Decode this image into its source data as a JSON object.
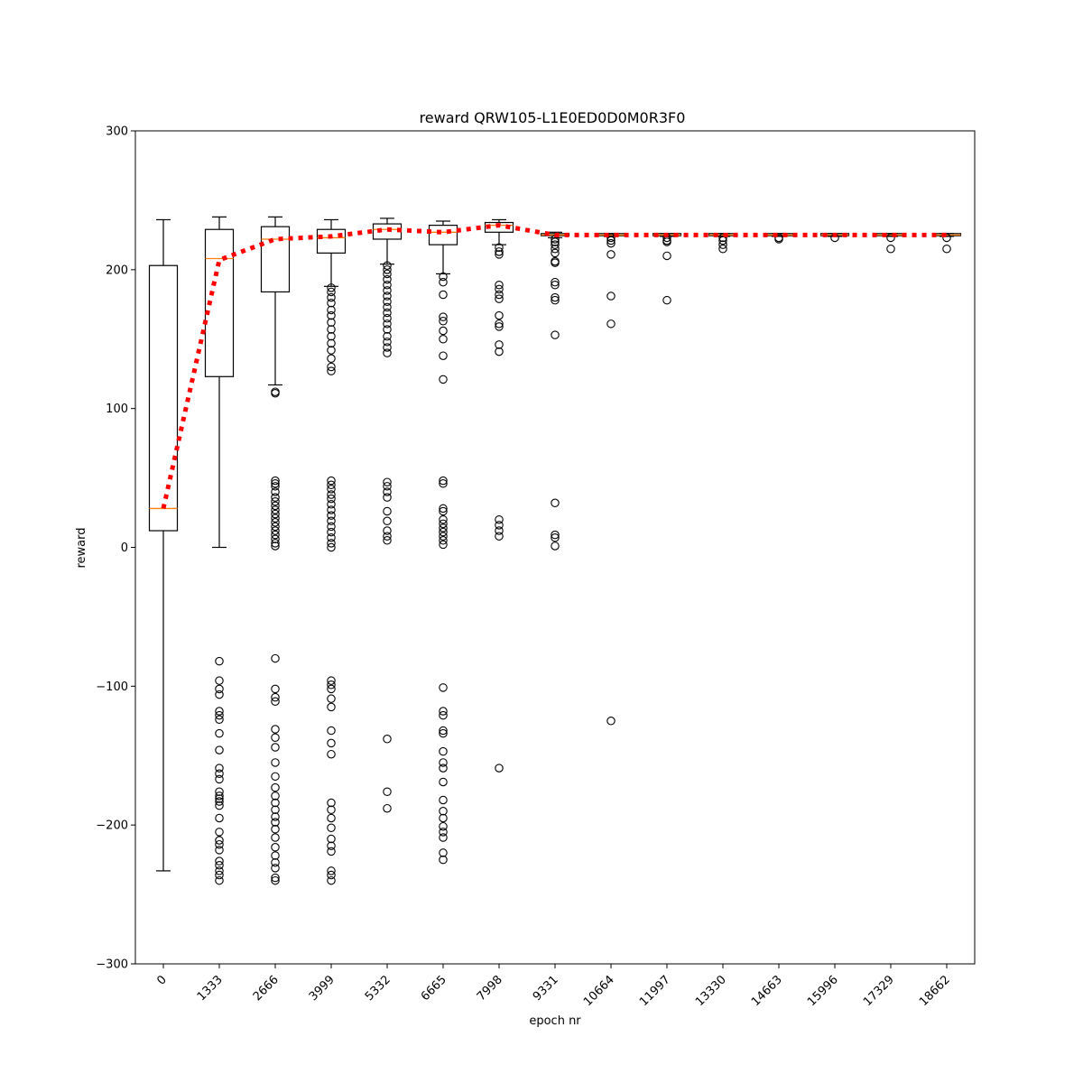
{
  "chart_data": {
    "type": "box",
    "title": "reward QRW105-L1E0ED0D0M0R3F0",
    "xlabel": "epoch nr",
    "ylabel": "reward",
    "ylim": [
      -300,
      300
    ],
    "yticks": [
      -300,
      -200,
      -100,
      0,
      100,
      200,
      300
    ],
    "categories": [
      "0",
      "1333",
      "2666",
      "3999",
      "5332",
      "6665",
      "7998",
      "9331",
      "10664",
      "11997",
      "13330",
      "14663",
      "15996",
      "17329",
      "18662"
    ],
    "boxes": [
      {
        "whisker_low": -233,
        "q1": 12,
        "median": 28,
        "q3": 203,
        "whisker_high": 236,
        "outliers": []
      },
      {
        "whisker_low": 0,
        "q1": 123,
        "median": 208,
        "q3": 229,
        "whisker_high": 238,
        "outliers": [
          -82,
          -96,
          -102,
          -106,
          -118,
          -121,
          -124,
          -134,
          -146,
          -159,
          -163,
          -167,
          -176,
          -179,
          -181,
          -183,
          -186,
          -195,
          -205,
          -211,
          -214,
          -218,
          -226,
          -229,
          -233,
          -236,
          -240
        ]
      },
      {
        "whisker_low": 117,
        "q1": 184,
        "median": 222,
        "q3": 231,
        "whisker_high": 238,
        "outliers": [
          111,
          112,
          48,
          46,
          44,
          40,
          36,
          33,
          30,
          27,
          24,
          21,
          18,
          15,
          12,
          9,
          6,
          3,
          1,
          -80,
          -102,
          -108,
          -111,
          -131,
          -137,
          -144,
          -155,
          -165,
          -173,
          -179,
          -184,
          -189,
          -194,
          -198,
          -203,
          -209,
          -216,
          -222,
          -227,
          -231,
          -238,
          -240
        ]
      },
      {
        "whisker_low": 188,
        "q1": 212,
        "median": 223,
        "q3": 229,
        "whisker_high": 236,
        "outliers": [
          187,
          184,
          180,
          176,
          171,
          167,
          162,
          157,
          152,
          147,
          142,
          136,
          130,
          127,
          48,
          45,
          42,
          38,
          35,
          31,
          27,
          23,
          19,
          15,
          11,
          7,
          3,
          0,
          -96,
          -99,
          -102,
          -109,
          -115,
          -132,
          -141,
          -149,
          -184,
          -189,
          -195,
          -202,
          -210,
          -215,
          -219,
          -233,
          -236,
          -240
        ]
      },
      {
        "whisker_low": 204,
        "q1": 222,
        "median": 229,
        "q3": 233,
        "whisker_high": 237,
        "outliers": [
          203,
          200,
          197,
          193,
          189,
          185,
          181,
          177,
          173,
          169,
          165,
          161,
          157,
          152,
          148,
          144,
          140,
          47,
          44,
          40,
          36,
          26,
          19,
          12,
          8,
          5,
          -138,
          -176,
          -188
        ]
      },
      {
        "whisker_low": 197,
        "q1": 218,
        "median": 227,
        "q3": 232,
        "whisker_high": 235,
        "outliers": [
          195,
          191,
          182,
          166,
          163,
          156,
          150,
          138,
          121,
          48,
          46,
          28,
          26,
          20,
          17,
          14,
          11,
          8,
          5,
          2,
          -101,
          -118,
          -121,
          -132,
          -134,
          -147,
          -155,
          -159,
          -169,
          -182,
          -190,
          -195,
          -201,
          -205,
          -209,
          -220,
          -225
        ]
      },
      {
        "whisker_low": 218,
        "q1": 227,
        "median": 232,
        "q3": 234,
        "whisker_high": 236,
        "outliers": [
          216,
          213,
          211,
          189,
          186,
          182,
          179,
          167,
          161,
          159,
          146,
          141,
          20,
          16,
          12,
          8,
          -159
        ]
      },
      {
        "whisker_low": 223,
        "q1": 224.5,
        "median": 225,
        "q3": 226,
        "whisker_high": 227,
        "outliers": [
          222,
          220,
          218,
          215,
          212,
          206,
          205,
          191,
          189,
          180,
          178,
          153,
          32,
          9,
          7,
          1
        ]
      },
      {
        "whisker_low": 224,
        "q1": 224.5,
        "median": 225,
        "q3": 226,
        "whisker_high": 226,
        "outliers": [
          223,
          221,
          219,
          211,
          181,
          161,
          -125
        ]
      },
      {
        "whisker_low": 224,
        "q1": 224.5,
        "median": 225,
        "q3": 226,
        "whisker_high": 226,
        "outliers": [
          223,
          221,
          220,
          210,
          178
        ]
      },
      {
        "whisker_low": 224,
        "q1": 224.5,
        "median": 225,
        "q3": 226,
        "whisker_high": 226,
        "outliers": [
          223,
          221,
          218,
          215
        ]
      },
      {
        "whisker_low": 224,
        "q1": 224.5,
        "median": 225,
        "q3": 226,
        "whisker_high": 226,
        "outliers": [
          223,
          222
        ]
      },
      {
        "whisker_low": 224,
        "q1": 224.5,
        "median": 225,
        "q3": 226,
        "whisker_high": 226,
        "outliers": [
          223
        ]
      },
      {
        "whisker_low": 224,
        "q1": 224.5,
        "median": 225,
        "q3": 226,
        "whisker_high": 226,
        "outliers": [
          223,
          215
        ]
      },
      {
        "whisker_low": 224,
        "q1": 224.5,
        "median": 225,
        "q3": 226,
        "whisker_high": 226,
        "outliers": [
          223,
          215
        ]
      }
    ],
    "mean_line": {
      "values": [
        28,
        207,
        222,
        224,
        229,
        227,
        232,
        225,
        225,
        225,
        225,
        225,
        225,
        225,
        225
      ],
      "color": "#ff0000",
      "style": "dotted"
    },
    "colors": {
      "box": "#000000",
      "median": "#ff7f0e",
      "mean_line": "#ff0000"
    },
    "grid": false,
    "legend": false
  }
}
